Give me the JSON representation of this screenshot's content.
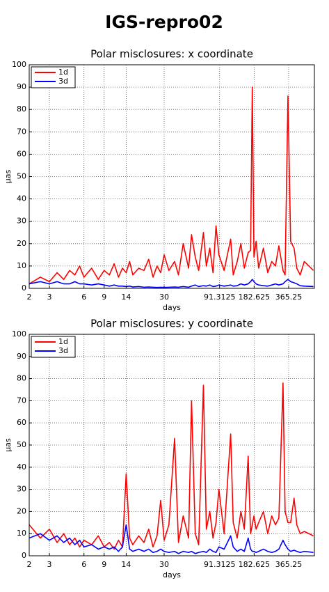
{
  "header": {
    "title": "IGS-repro02"
  },
  "chart_data": [
    {
      "type": "line",
      "title": "Polar misclosures: x coordinate",
      "xlabel": "days",
      "ylabel": "μas",
      "xscale": "log",
      "xlim": [
        2,
        612
      ],
      "ylim": [
        0,
        100
      ],
      "xticks": [
        2,
        3,
        6,
        9,
        14,
        30,
        91.3125,
        182.625,
        365.25
      ],
      "yticks": [
        0,
        10,
        20,
        30,
        40,
        50,
        60,
        70,
        80,
        90,
        100
      ],
      "grid": true,
      "legend": "upper left",
      "x": [
        2,
        2.5,
        3,
        3.5,
        4,
        4.5,
        5,
        5.5,
        6,
        7,
        8,
        9,
        10,
        11,
        12,
        13,
        14,
        15,
        16,
        18,
        20,
        22,
        24,
        26,
        28,
        30,
        33,
        37,
        40,
        44,
        49,
        52,
        56,
        60,
        66,
        70,
        75,
        80,
        85,
        90,
        100,
        114,
        120,
        130,
        140,
        150,
        162,
        170,
        176,
        182,
        190,
        200,
        220,
        240,
        260,
        280,
        300,
        326,
        340,
        360,
        380,
        407,
        430,
        460,
        500,
        600
      ],
      "series": [
        {
          "name": "1d",
          "color": "#ff0000",
          "values": [
            2,
            5,
            3,
            7,
            4,
            8,
            6,
            10,
            5,
            9,
            4,
            8,
            6,
            11,
            5,
            9,
            7,
            12,
            6,
            9,
            8,
            13,
            5,
            10,
            7,
            15,
            8,
            12,
            6,
            20,
            9,
            24,
            14,
            8,
            25,
            10,
            18,
            7,
            28,
            15,
            8,
            22,
            6,
            12,
            20,
            9,
            16,
            17,
            90,
            14,
            21,
            9,
            18,
            7,
            12,
            10,
            19,
            8,
            6,
            86,
            21,
            18,
            9,
            6,
            12,
            8
          ]
        },
        {
          "name": "3d",
          "color": "#0000ff",
          "values": [
            2,
            3,
            2,
            3,
            2,
            2,
            3,
            2,
            2,
            1.5,
            2,
            1.5,
            1,
            1.5,
            1,
            1,
            0.8,
            1,
            0.6,
            0.8,
            0.5,
            0.6,
            0.5,
            0.4,
            0.5,
            0.4,
            0.5,
            0.6,
            0.5,
            0.8,
            0.5,
            1,
            1.5,
            0.8,
            1.2,
            1,
            1.5,
            0.8,
            1,
            1.5,
            1,
            1.5,
            1,
            1.2,
            2,
            1.5,
            2,
            3,
            4,
            3,
            2,
            1.5,
            1.2,
            1,
            1.5,
            2,
            1.5,
            2,
            3,
            4,
            3,
            2.5,
            2,
            1.2,
            1,
            0.8
          ]
        }
      ]
    },
    {
      "type": "line",
      "title": "Polar misclosures: y coordinate",
      "xlabel": "days",
      "ylabel": "μas",
      "xscale": "log",
      "xlim": [
        2,
        612
      ],
      "ylim": [
        0,
        100
      ],
      "xticks": [
        2,
        3,
        6,
        9,
        14,
        30,
        91.3125,
        182.625,
        365.25
      ],
      "yticks": [
        0,
        10,
        20,
        30,
        40,
        50,
        60,
        70,
        80,
        90,
        100
      ],
      "grid": true,
      "legend": "upper left",
      "x": [
        2,
        2.5,
        3,
        3.5,
        4,
        4.5,
        5,
        5.5,
        6,
        7,
        8,
        9,
        10,
        11,
        12,
        13,
        14,
        15,
        16,
        18,
        20,
        22,
        24,
        26,
        28,
        30,
        33,
        37,
        40,
        44,
        49,
        52,
        56,
        60,
        66,
        70,
        75,
        80,
        85,
        90,
        100,
        114,
        120,
        130,
        140,
        150,
        162,
        170,
        176,
        182,
        190,
        200,
        220,
        240,
        260,
        280,
        300,
        326,
        340,
        360,
        380,
        407,
        430,
        460,
        500,
        600
      ],
      "series": [
        {
          "name": "1d",
          "color": "#ff0000",
          "values": [
            14,
            8,
            12,
            6,
            10,
            5,
            8,
            4,
            7,
            5,
            9,
            4,
            6,
            3,
            7,
            4,
            37,
            8,
            5,
            9,
            6,
            12,
            4,
            9,
            25,
            7,
            14,
            53,
            6,
            18,
            8,
            70,
            10,
            5,
            77,
            12,
            20,
            8,
            15,
            30,
            10,
            55,
            15,
            8,
            20,
            12,
            45,
            10,
            14,
            18,
            12,
            15,
            20,
            10,
            18,
            14,
            17,
            78,
            20,
            15,
            15,
            26,
            14,
            10,
            11,
            9
          ]
        },
        {
          "name": "3d",
          "color": "#0000ff",
          "values": [
            8,
            10,
            7,
            9,
            6,
            8,
            5,
            7,
            4,
            5,
            3,
            4,
            3,
            4,
            2,
            4,
            14,
            3,
            2,
            3,
            2,
            3,
            1.5,
            2,
            3,
            2,
            1.5,
            2,
            1,
            2,
            1.5,
            2,
            1,
            1.5,
            2,
            1.5,
            3,
            2,
            1.5,
            4,
            3,
            9,
            4,
            2,
            3,
            2,
            8,
            3,
            2,
            2,
            1.5,
            2,
            3,
            2,
            1.5,
            2,
            3,
            7,
            5,
            3,
            2,
            2.5,
            2,
            1.5,
            2,
            1.5
          ]
        }
      ]
    }
  ]
}
